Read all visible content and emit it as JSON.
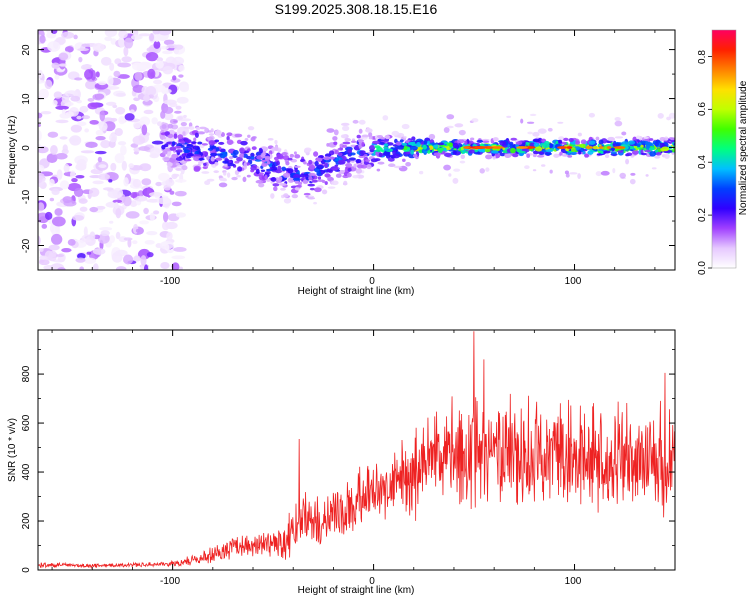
{
  "title": "S199.2025.308.18.15.E16",
  "chart_data": [
    {
      "type": "heatmap",
      "name": "spectrogram",
      "xlabel": "Height of straight line (km)",
      "ylabel": "Frequency (Hz)",
      "xlim": [
        -167,
        150
      ],
      "ylim": [
        -25,
        24
      ],
      "xticks": [
        -100,
        0,
        100
      ],
      "xtick_labels": [
        "-100",
        "0",
        "100"
      ],
      "yticks": [
        -20,
        -10,
        0,
        10,
        20
      ],
      "ytick_labels": [
        "-20",
        "-10",
        "0",
        "10",
        "20"
      ],
      "colorbar": {
        "label": "Normalized spectral amplitude",
        "range": [
          0,
          0.9
        ],
        "ticks": [
          0,
          0.2,
          0.4,
          0.6,
          0.8
        ],
        "tick_labels": [
          "0.0",
          "0.2",
          "0.4",
          "0.6",
          "0.8"
        ],
        "colors": [
          "#ffffff",
          "#e6c8ff",
          "#a040ff",
          "#3000ff",
          "#0040ff",
          "#00c0ff",
          "#00ff80",
          "#40ff00",
          "#c0ff00",
          "#ffe000",
          "#ff8000",
          "#ff2000",
          "#ff0060"
        ]
      },
      "ridge_profile": [
        {
          "x": -100,
          "y": 0.5
        },
        {
          "x": -80,
          "y": -1
        },
        {
          "x": -60,
          "y": -2
        },
        {
          "x": -50,
          "y": -4
        },
        {
          "x": -40,
          "y": -6
        },
        {
          "x": -30,
          "y": -5
        },
        {
          "x": -20,
          "y": -3
        },
        {
          "x": -10,
          "y": -1
        },
        {
          "x": 0,
          "y": -0.5
        },
        {
          "x": 20,
          "y": 0
        },
        {
          "x": 60,
          "y": 0
        },
        {
          "x": 100,
          "y": 0
        },
        {
          "x": 150,
          "y": 0
        }
      ],
      "noise_region": {
        "x_from": -167,
        "x_to": -100,
        "amplitude": 0.15
      }
    },
    {
      "type": "line",
      "name": "snr",
      "xlabel": "Height of straight line (km)",
      "ylabel": "SNR (10 * v/v)",
      "xlim": [
        -167,
        150
      ],
      "ylim": [
        0,
        980
      ],
      "xticks": [
        -100,
        0,
        100
      ],
      "xtick_labels": [
        "-100",
        "0",
        "100"
      ],
      "yticks": [
        0,
        200,
        400,
        600,
        800
      ],
      "ytick_labels": [
        "0",
        "200",
        "400",
        "600",
        "800"
      ],
      "color": "#ee2222",
      "series": [
        {
          "name": "SNR",
          "x": [
            -167,
            -140,
            -120,
            -100,
            -90,
            -80,
            -70,
            -60,
            -50,
            -40,
            -35,
            -30,
            -20,
            -10,
            0,
            10,
            20,
            25,
            30,
            40,
            50,
            60,
            80,
            100,
            120,
            140,
            150
          ],
          "value": [
            20,
            18,
            20,
            25,
            40,
            60,
            90,
            100,
            100,
            150,
            220,
            180,
            230,
            280,
            330,
            340,
            400,
            430,
            450,
            460,
            470,
            470,
            470,
            460,
            450,
            440,
            430
          ],
          "spread": [
            10,
            8,
            8,
            12,
            20,
            35,
            50,
            50,
            50,
            120,
            150,
            100,
            120,
            120,
            120,
            130,
            200,
            200,
            200,
            220,
            230,
            230,
            230,
            220,
            220,
            220,
            220
          ],
          "peaks": [
            {
              "x": 50,
              "y": 975
            },
            {
              "x": -37,
              "y": 535
            },
            {
              "x": 55,
              "y": 860
            },
            {
              "x": 145,
              "y": 805
            }
          ]
        }
      ]
    }
  ]
}
